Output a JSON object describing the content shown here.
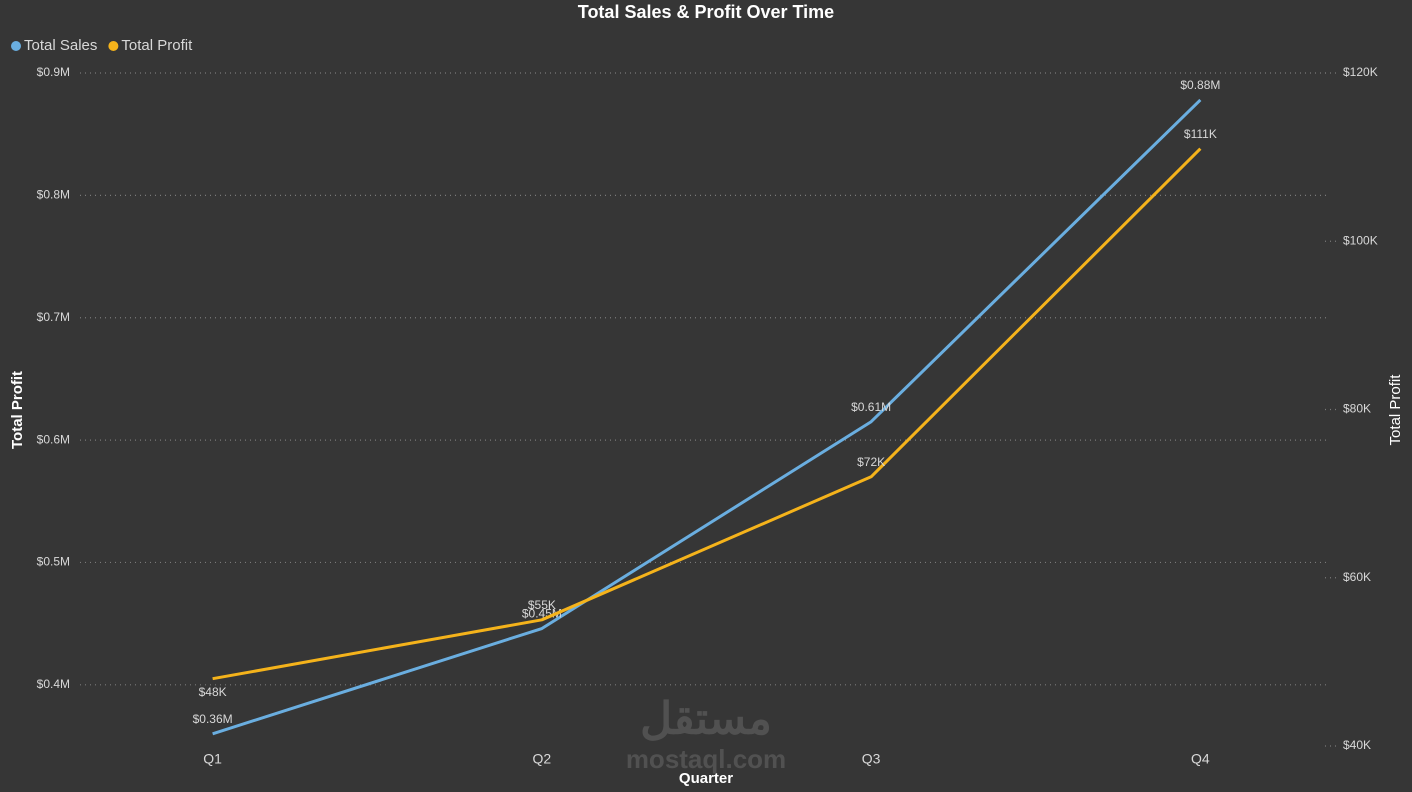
{
  "chart_data": {
    "type": "line",
    "title": "Total Sales & Profit Over Time",
    "x_label": "Quarter",
    "y_label": "Total Profit",
    "y2_label": "Total Profit",
    "categories": [
      "Q1",
      "Q2",
      "Q3",
      "Q4"
    ],
    "series": [
      {
        "name": "Total Sales",
        "color": "#6aaee0",
        "axis": "y",
        "values": [
          360000,
          446000,
          615000,
          878000
        ],
        "value_labels": [
          "$0.36M",
          "$0.45M",
          "$0.61M",
          "$0.88M"
        ]
      },
      {
        "name": "Total Profit",
        "color": "#f5b31b",
        "axis": "y2",
        "values": [
          48000,
          55000,
          72000,
          111000
        ],
        "value_labels": [
          "$48K",
          "$55K",
          "$72K",
          "$111K"
        ]
      }
    ],
    "ylim": [
      350000,
      900000
    ],
    "yticks": [
      {
        "value": 400000,
        "label": "$0.4M"
      },
      {
        "value": 500000,
        "label": "$0.5M"
      },
      {
        "value": 600000,
        "label": "$0.6M"
      },
      {
        "value": 700000,
        "label": "$0.7M"
      },
      {
        "value": 800000,
        "label": "$0.8M"
      },
      {
        "value": 900000,
        "label": "$0.9M"
      }
    ],
    "y2lim": [
      40000,
      120000
    ],
    "y2ticks": [
      {
        "value": 40000,
        "label": "$40K"
      },
      {
        "value": 60000,
        "label": "$60K"
      },
      {
        "value": 80000,
        "label": "$80K"
      },
      {
        "value": 100000,
        "label": "$100K"
      },
      {
        "value": 120000,
        "label": "$120K"
      }
    ],
    "grid": true,
    "legend": "top-left",
    "watermark": [
      "مستقل",
      "mostaql.com"
    ]
  }
}
